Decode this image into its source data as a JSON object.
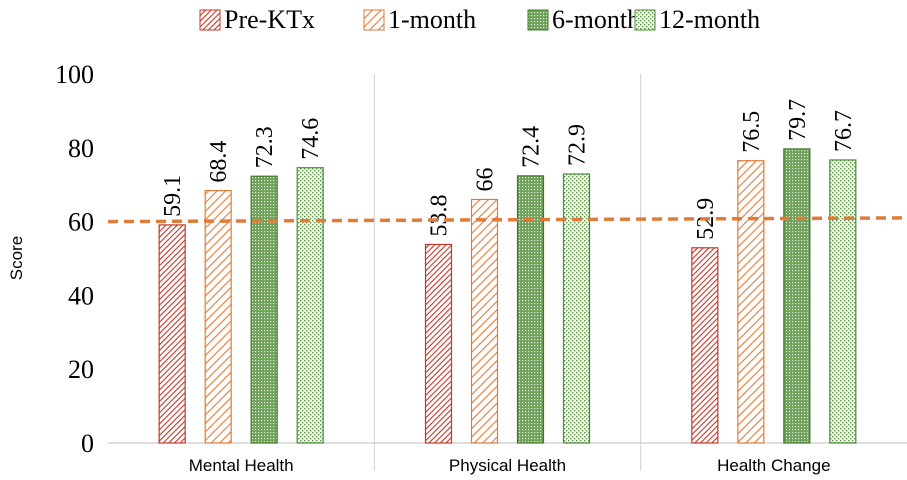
{
  "chart_data": {
    "type": "bar",
    "title": "",
    "xlabel": "",
    "ylabel": "Score",
    "ylim": [
      0,
      100
    ],
    "yticks": [
      0,
      20,
      40,
      60,
      80,
      100
    ],
    "categories": [
      "Mental Health",
      "Physical Health",
      "Health Change"
    ],
    "series": [
      {
        "name": "Pre-KTx",
        "values": [
          59.1,
          53.8,
          52.9
        ],
        "labels": [
          "59.1",
          "53.8",
          "52.9"
        ],
        "color": "#c0392b",
        "pattern": "diagonal-dense"
      },
      {
        "name": "1-month",
        "values": [
          68.4,
          66,
          76.5
        ],
        "labels": [
          "68.4",
          "66",
          "76.5"
        ],
        "color": "#e07b39",
        "pattern": "diagonal-wide"
      },
      {
        "name": "6-month",
        "values": [
          72.3,
          72.4,
          79.7
        ],
        "labels": [
          "72.3",
          "72.4",
          "79.7"
        ],
        "color": "#3e7a2c",
        "pattern": "dots-dense"
      },
      {
        "name": "12-month",
        "values": [
          74.6,
          72.9,
          76.7
        ],
        "labels": [
          "74.6",
          "72.9",
          "76.7"
        ],
        "color": "#4a8a3a",
        "pattern": "dots-sparse"
      }
    ],
    "reference_line": {
      "y_start": 60,
      "y_end": 61,
      "color": "#e07b39",
      "style": "dashed"
    },
    "grid": false,
    "category_separators": true,
    "legend_position": "top"
  }
}
